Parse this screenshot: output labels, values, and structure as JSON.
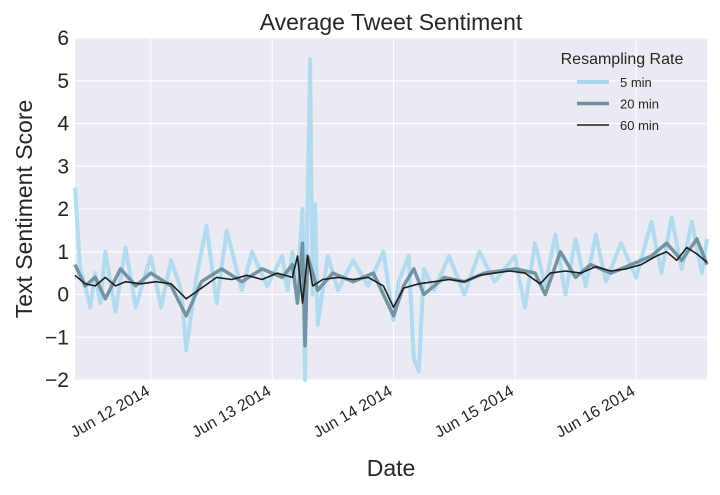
{
  "chart_data": {
    "type": "line",
    "title": "Average Tweet Sentiment",
    "xlabel": "Date",
    "ylabel": "Text Sentiment Score",
    "ylim": [
      -2,
      6
    ],
    "yticks": [
      "−2",
      "−1",
      "0",
      "1",
      "2",
      "3",
      "4",
      "5",
      "6"
    ],
    "xlim": [
      "2014-06-11 09:00",
      "2014-06-16 14:00"
    ],
    "xticks": [
      {
        "date": "2014-06-12",
        "label": "Jun 12 2014"
      },
      {
        "date": "2014-06-13",
        "label": "Jun 13 2014"
      },
      {
        "date": "2014-06-14",
        "label": "Jun 14 2014"
      },
      {
        "date": "2014-06-15",
        "label": "Jun 15 2014"
      },
      {
        "date": "2014-06-16",
        "label": "Jun 16 2014"
      }
    ],
    "grid": true,
    "legend": {
      "title": "Resampling Rate",
      "placement": "top-right"
    },
    "series": [
      {
        "name": "5 min",
        "color": "#a9d8ee",
        "points": [
          [
            "2014-06-11 09:00",
            2.5
          ],
          [
            "2014-06-11 10:00",
            0.6
          ],
          [
            "2014-06-11 11:00",
            0.2
          ],
          [
            "2014-06-11 12:00",
            -0.3
          ],
          [
            "2014-06-11 13:00",
            0.5
          ],
          [
            "2014-06-11 14:00",
            -0.2
          ],
          [
            "2014-06-11 15:00",
            1.0
          ],
          [
            "2014-06-11 17:00",
            -0.4
          ],
          [
            "2014-06-11 19:00",
            1.1
          ],
          [
            "2014-06-11 21:00",
            -0.3
          ],
          [
            "2014-06-12 00:00",
            0.9
          ],
          [
            "2014-06-12 02:00",
            -0.3
          ],
          [
            "2014-06-12 04:00",
            0.8
          ],
          [
            "2014-06-12 06:00",
            0.1
          ],
          [
            "2014-06-12 07:00",
            -1.3
          ],
          [
            "2014-06-12 09:00",
            0.4
          ],
          [
            "2014-06-12 11:00",
            1.6
          ],
          [
            "2014-06-12 13:00",
            -0.2
          ],
          [
            "2014-06-12 15:00",
            1.5
          ],
          [
            "2014-06-12 18:00",
            0.1
          ],
          [
            "2014-06-12 20:00",
            1.0
          ],
          [
            "2014-06-12 23:00",
            0.2
          ],
          [
            "2014-06-13 02:00",
            0.9
          ],
          [
            "2014-06-13 03:00",
            0.1
          ],
          [
            "2014-06-13 04:00",
            1.0
          ],
          [
            "2014-06-13 05:00",
            0.3
          ],
          [
            "2014-06-13 06:00",
            2.0
          ],
          [
            "2014-06-13 06:30",
            -2.0
          ],
          [
            "2014-06-13 07:00",
            2.2
          ],
          [
            "2014-06-13 07:30",
            5.5
          ],
          [
            "2014-06-13 08:00",
            0.0
          ],
          [
            "2014-06-13 08:30",
            2.1
          ],
          [
            "2014-06-13 09:00",
            -0.7
          ],
          [
            "2014-06-13 11:00",
            0.9
          ],
          [
            "2014-06-13 13:00",
            0.1
          ],
          [
            "2014-06-13 16:00",
            0.8
          ],
          [
            "2014-06-13 19:00",
            0.2
          ],
          [
            "2014-06-13 22:00",
            1.0
          ],
          [
            "2014-06-14 00:00",
            -0.6
          ],
          [
            "2014-06-14 01:00",
            0.3
          ],
          [
            "2014-06-14 03:00",
            0.9
          ],
          [
            "2014-06-14 04:00",
            -1.5
          ],
          [
            "2014-06-14 05:00",
            -1.8
          ],
          [
            "2014-06-14 06:00",
            0.6
          ],
          [
            "2014-06-14 08:00",
            0.1
          ],
          [
            "2014-06-14 11:00",
            0.9
          ],
          [
            "2014-06-14 14:00",
            0.0
          ],
          [
            "2014-06-14 17:00",
            1.0
          ],
          [
            "2014-06-14 20:00",
            0.3
          ],
          [
            "2014-06-15 00:00",
            0.9
          ],
          [
            "2014-06-15 02:00",
            -0.3
          ],
          [
            "2014-06-15 04:00",
            1.2
          ],
          [
            "2014-06-15 06:00",
            0.2
          ],
          [
            "2014-06-15 08:00",
            1.4
          ],
          [
            "2014-06-15 10:00",
            0.0
          ],
          [
            "2014-06-15 12:00",
            1.3
          ],
          [
            "2014-06-15 14:00",
            0.2
          ],
          [
            "2014-06-15 16:00",
            1.4
          ],
          [
            "2014-06-15 18:00",
            0.3
          ],
          [
            "2014-06-15 21:00",
            1.2
          ],
          [
            "2014-06-16 00:00",
            0.4
          ],
          [
            "2014-06-16 03:00",
            1.7
          ],
          [
            "2014-06-16 05:00",
            0.5
          ],
          [
            "2014-06-16 07:00",
            1.8
          ],
          [
            "2014-06-16 09:00",
            0.6
          ],
          [
            "2014-06-16 11:00",
            1.7
          ],
          [
            "2014-06-16 13:00",
            0.5
          ],
          [
            "2014-06-16 14:00",
            1.3
          ]
        ]
      },
      {
        "name": "20 min",
        "color": "#6e8f9e",
        "points": [
          [
            "2014-06-11 09:00",
            0.7
          ],
          [
            "2014-06-11 11:00",
            0.2
          ],
          [
            "2014-06-11 13:00",
            0.4
          ],
          [
            "2014-06-11 15:00",
            -0.1
          ],
          [
            "2014-06-11 18:00",
            0.6
          ],
          [
            "2014-06-11 21:00",
            0.2
          ],
          [
            "2014-06-12 00:00",
            0.5
          ],
          [
            "2014-06-12 04:00",
            0.2
          ],
          [
            "2014-06-12 07:00",
            -0.5
          ],
          [
            "2014-06-12 10:00",
            0.3
          ],
          [
            "2014-06-12 14:00",
            0.6
          ],
          [
            "2014-06-12 18:00",
            0.3
          ],
          [
            "2014-06-12 22:00",
            0.6
          ],
          [
            "2014-06-13 02:00",
            0.4
          ],
          [
            "2014-06-13 04:00",
            0.7
          ],
          [
            "2014-06-13 05:00",
            -0.2
          ],
          [
            "2014-06-13 06:00",
            1.2
          ],
          [
            "2014-06-13 06:30",
            -1.2
          ],
          [
            "2014-06-13 07:00",
            0.9
          ],
          [
            "2014-06-13 09:00",
            0.1
          ],
          [
            "2014-06-13 12:00",
            0.5
          ],
          [
            "2014-06-13 16:00",
            0.3
          ],
          [
            "2014-06-13 20:00",
            0.5
          ],
          [
            "2014-06-14 00:00",
            -0.5
          ],
          [
            "2014-06-14 02:00",
            0.2
          ],
          [
            "2014-06-14 04:00",
            0.6
          ],
          [
            "2014-06-14 06:00",
            0.0
          ],
          [
            "2014-06-14 10:00",
            0.4
          ],
          [
            "2014-06-14 14:00",
            0.3
          ],
          [
            "2014-06-14 18:00",
            0.5
          ],
          [
            "2014-06-15 00:00",
            0.6
          ],
          [
            "2014-06-15 04:00",
            0.5
          ],
          [
            "2014-06-15 06:00",
            0.0
          ],
          [
            "2014-06-15 09:00",
            1.0
          ],
          [
            "2014-06-15 12:00",
            0.4
          ],
          [
            "2014-06-15 15:00",
            0.7
          ],
          [
            "2014-06-15 19:00",
            0.5
          ],
          [
            "2014-06-15 23:00",
            0.7
          ],
          [
            "2014-06-16 03:00",
            0.9
          ],
          [
            "2014-06-16 06:00",
            1.2
          ],
          [
            "2014-06-16 09:00",
            0.8
          ],
          [
            "2014-06-16 12:00",
            1.3
          ],
          [
            "2014-06-16 14:00",
            0.7
          ]
        ]
      },
      {
        "name": "60 min",
        "color": "#1e1e1e",
        "points": [
          [
            "2014-06-11 09:00",
            0.45
          ],
          [
            "2014-06-11 11:00",
            0.25
          ],
          [
            "2014-06-11 13:00",
            0.2
          ],
          [
            "2014-06-11 15:00",
            0.4
          ],
          [
            "2014-06-11 17:00",
            0.2
          ],
          [
            "2014-06-11 19:00",
            0.3
          ],
          [
            "2014-06-11 22:00",
            0.25
          ],
          [
            "2014-06-12 01:00",
            0.3
          ],
          [
            "2014-06-12 04:00",
            0.25
          ],
          [
            "2014-06-12 07:00",
            -0.1
          ],
          [
            "2014-06-12 10:00",
            0.15
          ],
          [
            "2014-06-12 13:00",
            0.4
          ],
          [
            "2014-06-12 16:00",
            0.35
          ],
          [
            "2014-06-12 19:00",
            0.45
          ],
          [
            "2014-06-12 22:00",
            0.35
          ],
          [
            "2014-06-13 01:00",
            0.5
          ],
          [
            "2014-06-13 04:00",
            0.4
          ],
          [
            "2014-06-13 05:00",
            0.9
          ],
          [
            "2014-06-13 06:00",
            -0.2
          ],
          [
            "2014-06-13 07:00",
            0.9
          ],
          [
            "2014-06-13 08:00",
            0.2
          ],
          [
            "2014-06-13 10:00",
            0.35
          ],
          [
            "2014-06-13 13:00",
            0.4
          ],
          [
            "2014-06-13 16:00",
            0.35
          ],
          [
            "2014-06-13 19:00",
            0.4
          ],
          [
            "2014-06-13 22:00",
            0.2
          ],
          [
            "2014-06-14 00:00",
            -0.3
          ],
          [
            "2014-06-14 02:00",
            0.15
          ],
          [
            "2014-06-14 05:00",
            0.25
          ],
          [
            "2014-06-14 08:00",
            0.3
          ],
          [
            "2014-06-14 11:00",
            0.35
          ],
          [
            "2014-06-14 14:00",
            0.3
          ],
          [
            "2014-06-14 17:00",
            0.45
          ],
          [
            "2014-06-14 20:00",
            0.5
          ],
          [
            "2014-06-14 23:00",
            0.55
          ],
          [
            "2014-06-15 02:00",
            0.5
          ],
          [
            "2014-06-15 05:00",
            0.25
          ],
          [
            "2014-06-15 07:00",
            0.5
          ],
          [
            "2014-06-15 10:00",
            0.55
          ],
          [
            "2014-06-15 13:00",
            0.5
          ],
          [
            "2014-06-15 16:00",
            0.65
          ],
          [
            "2014-06-15 19:00",
            0.55
          ],
          [
            "2014-06-15 22:00",
            0.6
          ],
          [
            "2014-06-16 01:00",
            0.7
          ],
          [
            "2014-06-16 04:00",
            0.9
          ],
          [
            "2014-06-16 06:00",
            1.0
          ],
          [
            "2014-06-16 08:00",
            0.8
          ],
          [
            "2014-06-16 10:00",
            1.1
          ],
          [
            "2014-06-16 12:00",
            0.95
          ],
          [
            "2014-06-16 14:00",
            0.75
          ]
        ]
      }
    ]
  }
}
